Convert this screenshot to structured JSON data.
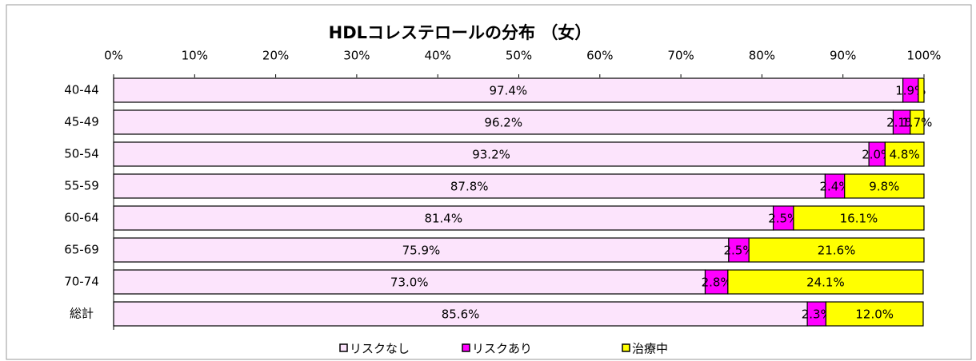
{
  "chart_data": {
    "type": "stacked-bar-horizontal",
    "title": "HDLコレステロールの分布 （女）",
    "categories": [
      "40-44",
      "45-49",
      "50-54",
      "55-59",
      "60-64",
      "65-69",
      "70-74",
      "総計"
    ],
    "series": [
      {
        "name": "リスクなし",
        "color": "#fce4fc",
        "values": [
          97.4,
          96.2,
          93.2,
          87.8,
          81.4,
          75.9,
          73.0,
          85.6
        ],
        "value_labels": [
          "97.4%",
          "96.2%",
          "93.2%",
          "87.8%",
          "81.4%",
          "75.9%",
          "73.0%",
          "85.6%"
        ]
      },
      {
        "name": "リスクあり",
        "color": "#ff00ff",
        "values": [
          1.9,
          2.1,
          2.0,
          2.4,
          2.5,
          2.5,
          2.8,
          2.3
        ],
        "value_labels": [
          "1.9%",
          "2.1%",
          "2.0%",
          "2.4%",
          "2.5%",
          "2.5%",
          "2.8%",
          "2.3%"
        ]
      },
      {
        "name": "治療中",
        "color": "#ffff00",
        "values": [
          0.7,
          1.7,
          4.8,
          9.8,
          16.1,
          21.6,
          24.1,
          12.0
        ],
        "value_labels": [
          null,
          "1.7%",
          "4.8%",
          "9.8%",
          "16.1%",
          "21.6%",
          "24.1%",
          "12.0%"
        ]
      }
    ],
    "xlim": [
      0,
      100
    ],
    "xticks": [
      {
        "value": 0,
        "label": "0%"
      },
      {
        "value": 10,
        "label": "10%"
      },
      {
        "value": 20,
        "label": "20%"
      },
      {
        "value": 30,
        "label": "30%"
      },
      {
        "value": 40,
        "label": "40%"
      },
      {
        "value": 50,
        "label": "50%"
      },
      {
        "value": 60,
        "label": "60%"
      },
      {
        "value": 70,
        "label": "70%"
      },
      {
        "value": 80,
        "label": "80%"
      },
      {
        "value": 90,
        "label": "90%"
      },
      {
        "value": 100,
        "label": "100%"
      }
    ],
    "legend": "bottom"
  }
}
